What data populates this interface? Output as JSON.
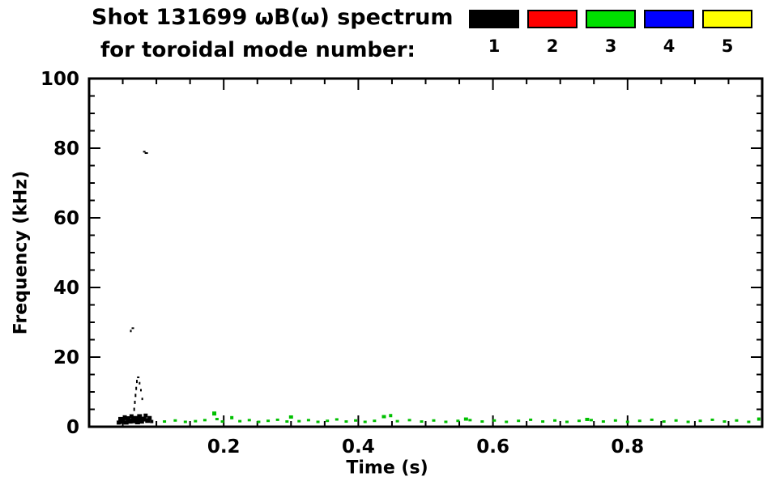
{
  "page": {
    "background": "#ffffff"
  },
  "chart_data": {
    "type": "scatter",
    "title": "Shot 131699 ωB(ω) spectrum",
    "subtitle": "for toroidal mode number:",
    "xlabel": "Time (s)",
    "ylabel": "Frequency (kHz)",
    "xlim": [
      0.0,
      1.0
    ],
    "ylim": [
      0,
      100
    ],
    "x_major_ticks": [
      0.2,
      0.4,
      0.6,
      0.8
    ],
    "x_minor_step": 0.05,
    "y_major_ticks": [
      0,
      20,
      40,
      60,
      80,
      100
    ],
    "y_minor_step": 5,
    "grid": false,
    "legend_position": "top-right",
    "legend": [
      {
        "label": "1",
        "color": "#000000"
      },
      {
        "label": "2",
        "color": "#ff0000"
      },
      {
        "label": "3",
        "color": "#00e000"
      },
      {
        "label": "4",
        "color": "#0000ff"
      },
      {
        "label": "5",
        "color": "#ffff00"
      }
    ],
    "series": [
      {
        "name": "mode-1",
        "color": "#000000",
        "points": [
          [
            0.044,
            1.2,
            5,
            5
          ],
          [
            0.047,
            2.0,
            6,
            7
          ],
          [
            0.05,
            1.5,
            6,
            6
          ],
          [
            0.053,
            2.6,
            5,
            6
          ],
          [
            0.055,
            1.2,
            6,
            5
          ],
          [
            0.058,
            2.2,
            6,
            7
          ],
          [
            0.061,
            1.6,
            6,
            6
          ],
          [
            0.063,
            3.0,
            5,
            5
          ],
          [
            0.066,
            1.8,
            6,
            7
          ],
          [
            0.069,
            2.4,
            6,
            6
          ],
          [
            0.072,
            1.4,
            6,
            6
          ],
          [
            0.075,
            2.8,
            6,
            7
          ],
          [
            0.078,
            1.6,
            6,
            6
          ],
          [
            0.081,
            2.2,
            6,
            6
          ],
          [
            0.084,
            3.2,
            5,
            5
          ],
          [
            0.087,
            1.8,
            6,
            6
          ],
          [
            0.09,
            2.5,
            5,
            5
          ],
          [
            0.093,
            1.5,
            4,
            4
          ],
          [
            0.067,
            5.0,
            2,
            4
          ],
          [
            0.068,
            7.0,
            2,
            4
          ],
          [
            0.069,
            9.0,
            2,
            4
          ],
          [
            0.07,
            11.0,
            2,
            4
          ],
          [
            0.071,
            13.0,
            2,
            4
          ],
          [
            0.073,
            14.2,
            3,
            2
          ],
          [
            0.075,
            12.5,
            2,
            3
          ],
          [
            0.077,
            10.5,
            2,
            3
          ],
          [
            0.079,
            8.0,
            2,
            3
          ],
          [
            0.062,
            27.5,
            2,
            3
          ],
          [
            0.065,
            28.3,
            3,
            2
          ],
          [
            0.082,
            79.0,
            3,
            2
          ],
          [
            0.085,
            78.6,
            4,
            2
          ]
        ]
      },
      {
        "name": "mode-3",
        "color": "#00c000",
        "points": [
          [
            0.112,
            1.5
          ],
          [
            0.128,
            1.8
          ],
          [
            0.143,
            1.4
          ],
          [
            0.158,
            1.6
          ],
          [
            0.172,
            1.9
          ],
          [
            0.186,
            3.8,
            5,
            5
          ],
          [
            0.19,
            2.2
          ],
          [
            0.198,
            1.5
          ],
          [
            0.212,
            2.6,
            4,
            4
          ],
          [
            0.224,
            1.6
          ],
          [
            0.238,
            1.9
          ],
          [
            0.252,
            1.4
          ],
          [
            0.266,
            1.7
          ],
          [
            0.28,
            2.0
          ],
          [
            0.294,
            1.5
          ],
          [
            0.3,
            2.8,
            5,
            4
          ],
          [
            0.312,
            1.6
          ],
          [
            0.326,
            1.9
          ],
          [
            0.34,
            1.4
          ],
          [
            0.354,
            1.7
          ],
          [
            0.368,
            2.1
          ],
          [
            0.382,
            1.5
          ],
          [
            0.396,
            1.8
          ],
          [
            0.41,
            1.4
          ],
          [
            0.424,
            1.7
          ],
          [
            0.438,
            2.9,
            5,
            4
          ],
          [
            0.448,
            3.2,
            4,
            4
          ],
          [
            0.458,
            1.6
          ],
          [
            0.476,
            1.9
          ],
          [
            0.494,
            1.5
          ],
          [
            0.512,
            1.8
          ],
          [
            0.53,
            1.4
          ],
          [
            0.548,
            1.7
          ],
          [
            0.56,
            2.2,
            5,
            4
          ],
          [
            0.566,
            1.9
          ],
          [
            0.584,
            1.5
          ],
          [
            0.602,
            1.8
          ],
          [
            0.62,
            1.4
          ],
          [
            0.638,
            1.7
          ],
          [
            0.656,
            2.0
          ],
          [
            0.674,
            1.5
          ],
          [
            0.692,
            1.8
          ],
          [
            0.71,
            1.4
          ],
          [
            0.728,
            1.7
          ],
          [
            0.74,
            2.1,
            5,
            4
          ],
          [
            0.746,
            1.9
          ],
          [
            0.764,
            1.5
          ],
          [
            0.782,
            1.8
          ],
          [
            0.8,
            1.4
          ],
          [
            0.818,
            1.7
          ],
          [
            0.836,
            2.0
          ],
          [
            0.854,
            1.5
          ],
          [
            0.872,
            1.8
          ],
          [
            0.89,
            1.4
          ],
          [
            0.908,
            1.7
          ],
          [
            0.926,
            2.0
          ],
          [
            0.944,
            1.5
          ],
          [
            0.962,
            1.8
          ],
          [
            0.98,
            1.4
          ],
          [
            0.995,
            2.2,
            4,
            4
          ]
        ]
      }
    ]
  }
}
